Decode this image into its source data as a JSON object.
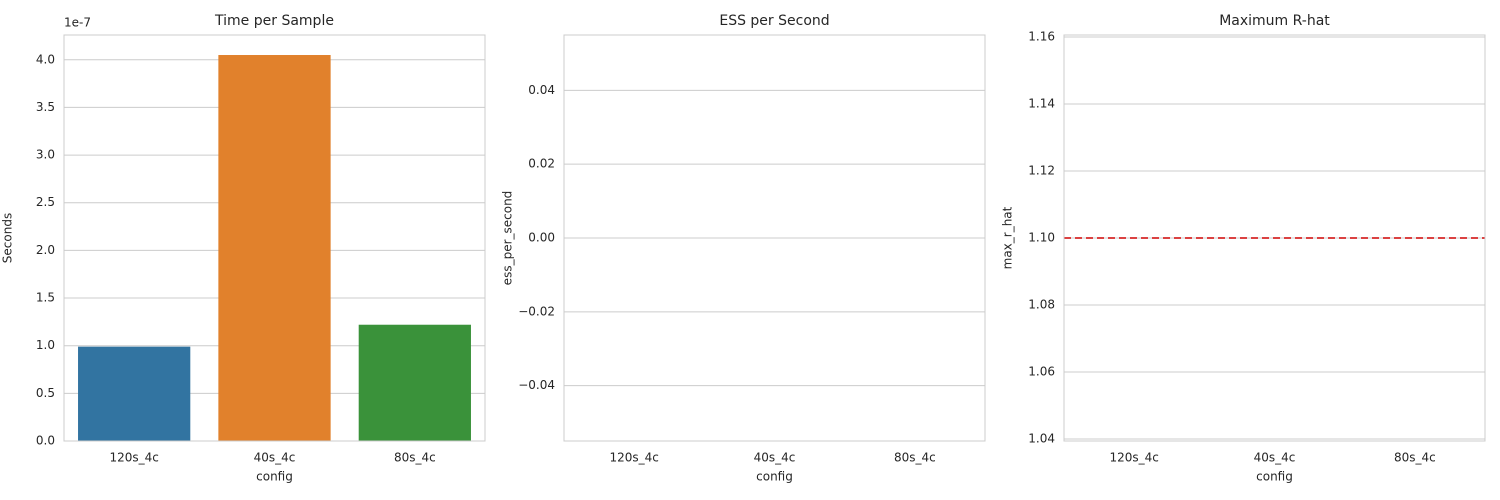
{
  "chart_data": [
    {
      "type": "bar",
      "title": "Time per Sample",
      "x_label": "config",
      "y_label": "Seconds",
      "axis_offset": "1e-7",
      "categories": [
        "120s_4c",
        "40s_4c",
        "80s_4c"
      ],
      "values": [
        9.9e-08,
        4.05e-07,
        1.22e-07
      ],
      "colors": [
        "#3274a1",
        "#e1812c",
        "#3a923a"
      ],
      "ylim": [
        0,
        4.26e-07
      ],
      "yticks": [
        {
          "value": 0,
          "label": "0.0"
        },
        {
          "value": 5e-08,
          "label": "0.5"
        },
        {
          "value": 1e-07,
          "label": "1.0"
        },
        {
          "value": 1.5e-07,
          "label": "1.5"
        },
        {
          "value": 2e-07,
          "label": "2.0"
        },
        {
          "value": 2.5e-07,
          "label": "2.5"
        },
        {
          "value": 3e-07,
          "label": "3.0"
        },
        {
          "value": 3.5e-07,
          "label": "3.5"
        },
        {
          "value": 4e-07,
          "label": "4.0"
        }
      ],
      "grid": true
    },
    {
      "type": "bar",
      "title": "ESS per Second",
      "x_label": "config",
      "y_label": "ess_per_second",
      "categories": [
        "120s_4c",
        "40s_4c",
        "80s_4c"
      ],
      "values": [
        null,
        null,
        null
      ],
      "colors": [
        "#3274a1",
        "#e1812c",
        "#3a923a"
      ],
      "ylim": [
        -0.055,
        0.055
      ],
      "yticks": [
        {
          "value": -0.04,
          "label": "−0.04"
        },
        {
          "value": -0.02,
          "label": "−0.02"
        },
        {
          "value": 0,
          "label": "0.00"
        },
        0.02,
        0.04
      ],
      "grid": true
    },
    {
      "type": "bar",
      "title": "Maximum R-hat",
      "x_label": "config",
      "y_label": "max_r_hat",
      "categories": [
        "120s_4c",
        "40s_4c",
        "80s_4c"
      ],
      "values": [
        null,
        null,
        null
      ],
      "colors": [
        "#3274a1",
        "#e1812c",
        "#3a923a"
      ],
      "ylim": [
        1.0394,
        1.1606
      ],
      "yticks": [
        1.04,
        1.06,
        1.08,
        {
          "value": 1.1,
          "label": "1.10"
        },
        1.12,
        1.14,
        1.16
      ],
      "grid": true,
      "threshold": {
        "value": 1.1,
        "color": "#d62728"
      }
    }
  ]
}
